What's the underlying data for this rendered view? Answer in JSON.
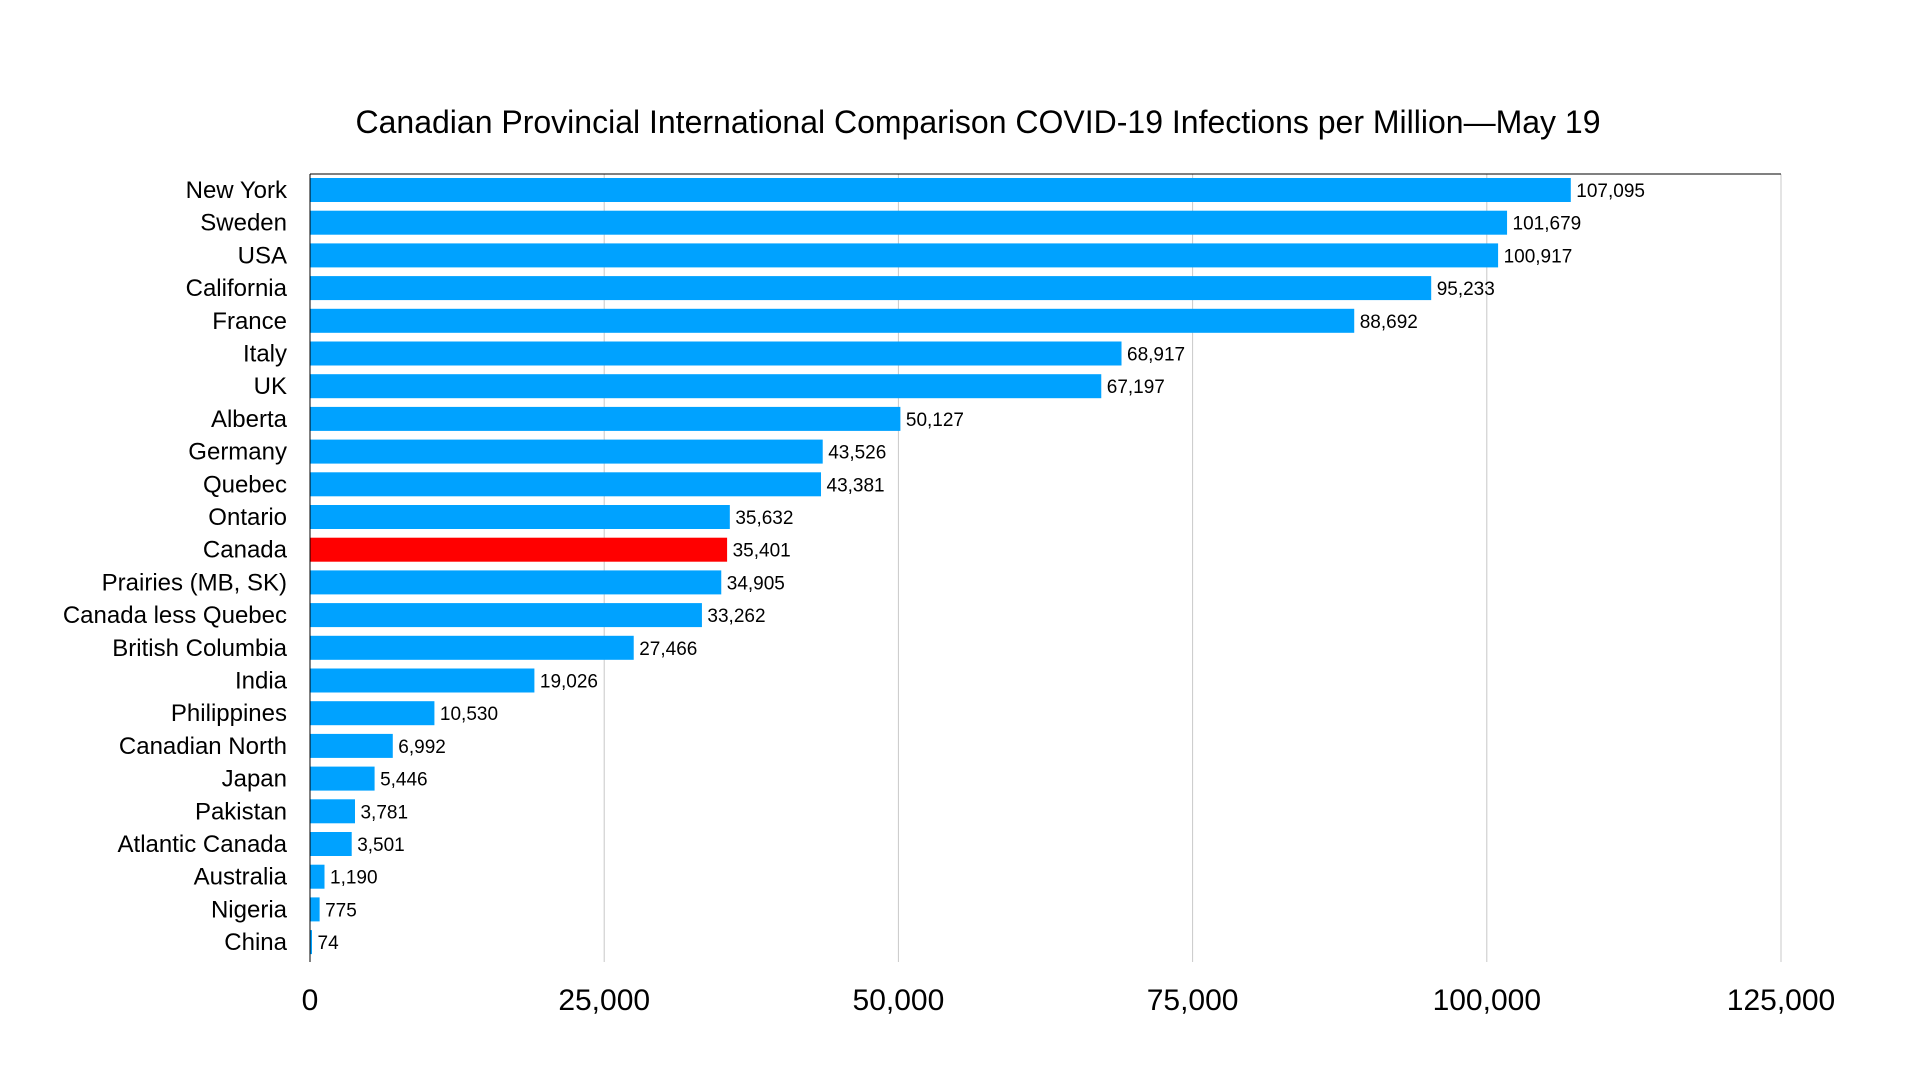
{
  "chart_data": {
    "type": "bar",
    "orientation": "horizontal",
    "title": "Canadian Provincial International Comparison COVID-19 Infections per Million—May 19",
    "xlabel": "",
    "ylabel": "",
    "xlim": [
      0,
      125000
    ],
    "x_ticks": [
      0,
      25000,
      50000,
      75000,
      100000,
      125000
    ],
    "x_tick_labels": [
      "0",
      "25,000",
      "50,000",
      "75,000",
      "100,000",
      "125,000"
    ],
    "grid": "vertical",
    "legend": "none",
    "colors": {
      "default": "#00A2FF",
      "highlight": "#FF0000"
    },
    "highlight_category": "Canada",
    "categories": [
      "New York",
      "Sweden",
      "USA",
      "California",
      "France",
      "Italy",
      "UK",
      "Alberta",
      "Germany",
      "Quebec",
      "Ontario",
      "Canada",
      "Prairies (MB, SK)",
      "Canada less Quebec",
      "British Columbia",
      "India",
      "Philippines",
      "Canadian North",
      "Japan",
      "Pakistan",
      "Atlantic Canada",
      "Australia",
      "Nigeria",
      "China"
    ],
    "values": [
      107095,
      101679,
      100917,
      95233,
      88692,
      68917,
      67197,
      50127,
      43526,
      43381,
      35632,
      35401,
      34905,
      33262,
      27466,
      19026,
      10530,
      6992,
      5446,
      3781,
      3501,
      1190,
      775,
      74
    ],
    "value_labels": [
      "107,095",
      "101,679",
      "100,917",
      "95,233",
      "88,692",
      "68,917",
      "67,197",
      "50,127",
      "43,526",
      "43,381",
      "35,632",
      "35,401",
      "34,905",
      "33,262",
      "27,466",
      "19,026",
      "10,530",
      "6,992",
      "5,446",
      "3,781",
      "3,501",
      "1,190",
      "775",
      "74"
    ]
  }
}
